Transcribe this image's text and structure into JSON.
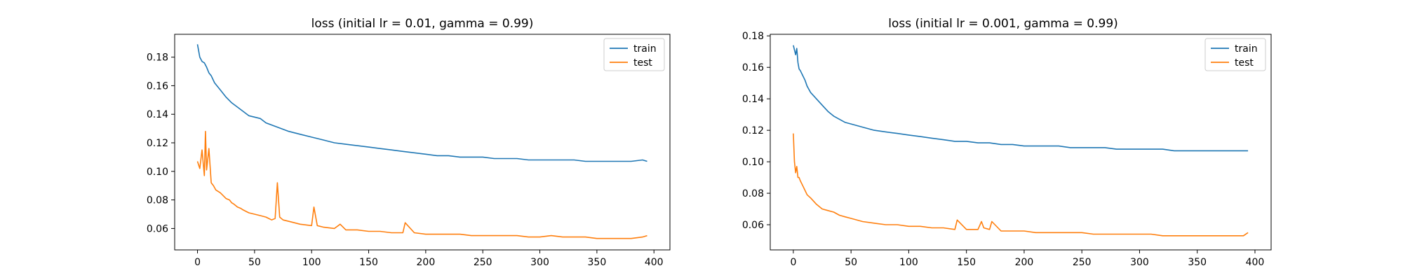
{
  "chart_data": [
    {
      "type": "line",
      "title": "loss (initial lr = 0.01, gamma = 0.99)",
      "xlabel": "",
      "ylabel": "",
      "xlim": [
        -20,
        414
      ],
      "ylim": [
        0.045,
        0.196
      ],
      "xticks": [
        0,
        50,
        100,
        150,
        200,
        250,
        300,
        350,
        400
      ],
      "yticks": [
        0.06,
        0.08,
        0.1,
        0.12,
        0.14,
        0.16,
        0.18
      ],
      "ytick_labels": [
        "0.06",
        "0.08",
        "0.10",
        "0.12",
        "0.14",
        "0.16",
        "0.18"
      ],
      "grid": false,
      "legend": "top-right",
      "series": [
        {
          "name": "train",
          "color": "#1f77b4",
          "x": [
            0,
            2,
            4,
            6,
            8,
            10,
            12,
            15,
            20,
            25,
            30,
            35,
            40,
            45,
            50,
            55,
            60,
            70,
            80,
            90,
            100,
            110,
            120,
            130,
            140,
            150,
            160,
            170,
            180,
            190,
            200,
            210,
            220,
            230,
            240,
            250,
            260,
            270,
            280,
            290,
            300,
            310,
            320,
            330,
            340,
            350,
            360,
            370,
            380,
            390,
            394
          ],
          "y": [
            0.189,
            0.18,
            0.177,
            0.176,
            0.173,
            0.169,
            0.167,
            0.162,
            0.157,
            0.152,
            0.148,
            0.145,
            0.142,
            0.139,
            0.138,
            0.137,
            0.134,
            0.131,
            0.128,
            0.126,
            0.124,
            0.122,
            0.12,
            0.119,
            0.118,
            0.117,
            0.116,
            0.115,
            0.114,
            0.113,
            0.112,
            0.111,
            0.111,
            0.11,
            0.11,
            0.11,
            0.109,
            0.109,
            0.109,
            0.108,
            0.108,
            0.108,
            0.108,
            0.108,
            0.107,
            0.107,
            0.107,
            0.107,
            0.107,
            0.108,
            0.107
          ]
        },
        {
          "name": "test",
          "color": "#ff7f0e",
          "x": [
            0,
            2,
            4,
            6,
            7,
            8,
            10,
            12,
            14,
            16,
            20,
            25,
            28,
            30,
            32,
            35,
            38,
            40,
            45,
            50,
            55,
            60,
            65,
            68,
            70,
            72,
            75,
            80,
            90,
            100,
            102,
            105,
            110,
            120,
            125,
            130,
            140,
            150,
            160,
            170,
            180,
            182,
            190,
            200,
            210,
            220,
            230,
            240,
            250,
            260,
            270,
            280,
            290,
            300,
            310,
            320,
            330,
            340,
            350,
            360,
            370,
            380,
            390,
            394
          ],
          "y": [
            0.107,
            0.102,
            0.115,
            0.097,
            0.128,
            0.101,
            0.116,
            0.092,
            0.09,
            0.087,
            0.085,
            0.081,
            0.08,
            0.078,
            0.077,
            0.075,
            0.074,
            0.073,
            0.071,
            0.07,
            0.069,
            0.068,
            0.066,
            0.067,
            0.092,
            0.068,
            0.066,
            0.065,
            0.063,
            0.062,
            0.075,
            0.062,
            0.061,
            0.06,
            0.063,
            0.059,
            0.059,
            0.058,
            0.058,
            0.057,
            0.057,
            0.064,
            0.057,
            0.056,
            0.056,
            0.056,
            0.056,
            0.055,
            0.055,
            0.055,
            0.055,
            0.055,
            0.054,
            0.054,
            0.055,
            0.054,
            0.054,
            0.054,
            0.053,
            0.053,
            0.053,
            0.053,
            0.054,
            0.055
          ]
        }
      ]
    },
    {
      "type": "line",
      "title": "loss (initial lr = 0.001, gamma = 0.99)",
      "xlabel": "",
      "ylabel": "",
      "xlim": [
        -20,
        414
      ],
      "ylim": [
        0.044,
        0.181
      ],
      "xticks": [
        0,
        50,
        100,
        150,
        200,
        250,
        300,
        350,
        400
      ],
      "yticks": [
        0.06,
        0.08,
        0.1,
        0.12,
        0.14,
        0.16,
        0.18
      ],
      "ytick_labels": [
        "0.06",
        "0.08",
        "0.10",
        "0.12",
        "0.14",
        "0.16",
        "0.18"
      ],
      "grid": false,
      "legend": "top-right",
      "series": [
        {
          "name": "train",
          "color": "#1f77b4",
          "x": [
            0,
            2,
            3,
            4,
            5,
            6,
            8,
            10,
            12,
            15,
            20,
            25,
            30,
            35,
            40,
            45,
            50,
            60,
            70,
            80,
            90,
            100,
            110,
            120,
            130,
            140,
            150,
            160,
            170,
            180,
            190,
            200,
            210,
            220,
            230,
            240,
            250,
            260,
            270,
            280,
            290,
            300,
            310,
            320,
            330,
            340,
            350,
            360,
            370,
            380,
            390,
            394
          ],
          "y": [
            0.174,
            0.168,
            0.172,
            0.163,
            0.159,
            0.158,
            0.155,
            0.152,
            0.148,
            0.144,
            0.14,
            0.136,
            0.132,
            0.129,
            0.127,
            0.125,
            0.124,
            0.122,
            0.12,
            0.119,
            0.118,
            0.117,
            0.116,
            0.115,
            0.114,
            0.113,
            0.113,
            0.112,
            0.112,
            0.111,
            0.111,
            0.11,
            0.11,
            0.11,
            0.11,
            0.109,
            0.109,
            0.109,
            0.109,
            0.108,
            0.108,
            0.108,
            0.108,
            0.108,
            0.107,
            0.107,
            0.107,
            0.107,
            0.107,
            0.107,
            0.107,
            0.107
          ]
        },
        {
          "name": "test",
          "color": "#ff7f0e",
          "x": [
            0,
            1,
            2,
            3,
            4,
            5,
            6,
            8,
            10,
            12,
            15,
            20,
            25,
            30,
            35,
            40,
            45,
            50,
            60,
            70,
            80,
            90,
            100,
            110,
            120,
            130,
            140,
            142,
            150,
            160,
            163,
            165,
            170,
            172,
            180,
            190,
            200,
            210,
            220,
            230,
            240,
            250,
            260,
            270,
            280,
            290,
            300,
            310,
            320,
            330,
            340,
            350,
            360,
            370,
            380,
            390,
            394
          ],
          "y": [
            0.118,
            0.1,
            0.093,
            0.097,
            0.09,
            0.09,
            0.088,
            0.085,
            0.082,
            0.079,
            0.077,
            0.073,
            0.07,
            0.069,
            0.068,
            0.066,
            0.065,
            0.064,
            0.062,
            0.061,
            0.06,
            0.06,
            0.059,
            0.059,
            0.058,
            0.058,
            0.057,
            0.063,
            0.057,
            0.057,
            0.062,
            0.058,
            0.057,
            0.062,
            0.056,
            0.056,
            0.056,
            0.055,
            0.055,
            0.055,
            0.055,
            0.055,
            0.054,
            0.054,
            0.054,
            0.054,
            0.054,
            0.054,
            0.053,
            0.053,
            0.053,
            0.053,
            0.053,
            0.053,
            0.053,
            0.053,
            0.055
          ]
        }
      ]
    }
  ]
}
